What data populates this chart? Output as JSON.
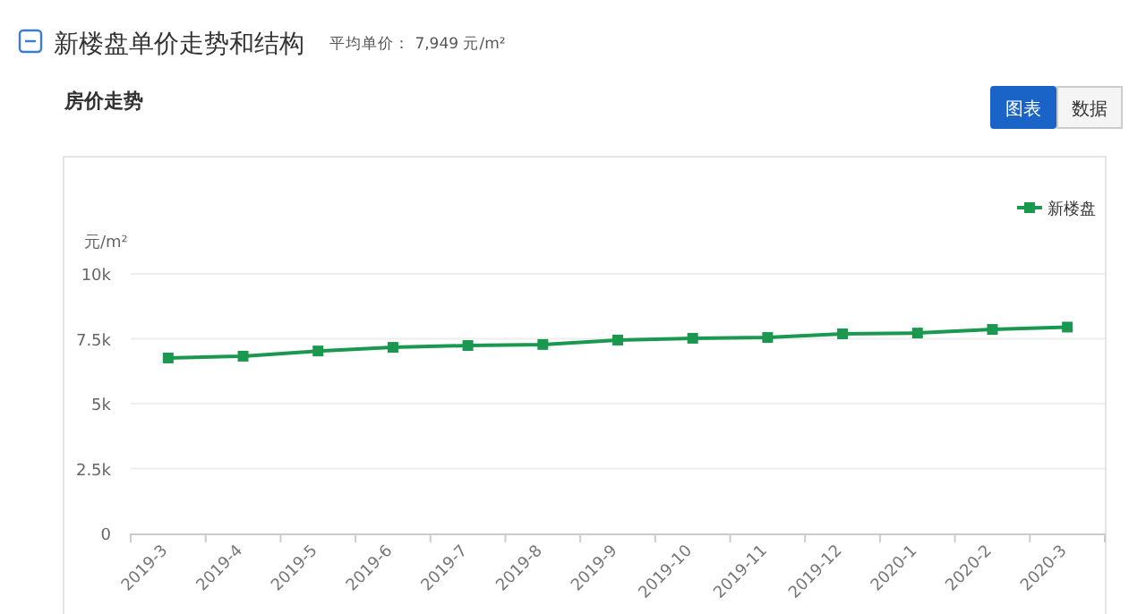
{
  "chart_data": {
    "type": "line",
    "title": "新楼盘单价走势和结构",
    "subtitle": "平均单价： 7,949 元/m²",
    "ylabel": "元/m²",
    "annotations": [
      "房价走势",
      "图表",
      "数据"
    ],
    "categories": [
      "2019-3",
      "2019-4",
      "2019-5",
      "2019-6",
      "2019-7",
      "2019-8",
      "2019-9",
      "2019-10",
      "2019-11",
      "2019-12",
      "2020-1",
      "2020-2",
      "2020-3"
    ],
    "series": [
      {
        "name": "新楼盘",
        "color": "#1a9850",
        "values": [
          6760,
          6830,
          7030,
          7170,
          7240,
          7280,
          7450,
          7520,
          7550,
          7690,
          7720,
          7860,
          7950
        ]
      }
    ],
    "ylim": [
      0,
      10000
    ],
    "yticks": [
      0,
      {
        "value": 2500,
        "label": "2.5k"
      },
      {
        "value": 5000,
        "label": "5k"
      },
      {
        "value": 7500,
        "label": "7.5k"
      },
      {
        "value": 10000,
        "label": "10k"
      }
    ],
    "grid": "y",
    "legend": "top right",
    "marker": "square",
    "line_style": "solid"
  }
}
